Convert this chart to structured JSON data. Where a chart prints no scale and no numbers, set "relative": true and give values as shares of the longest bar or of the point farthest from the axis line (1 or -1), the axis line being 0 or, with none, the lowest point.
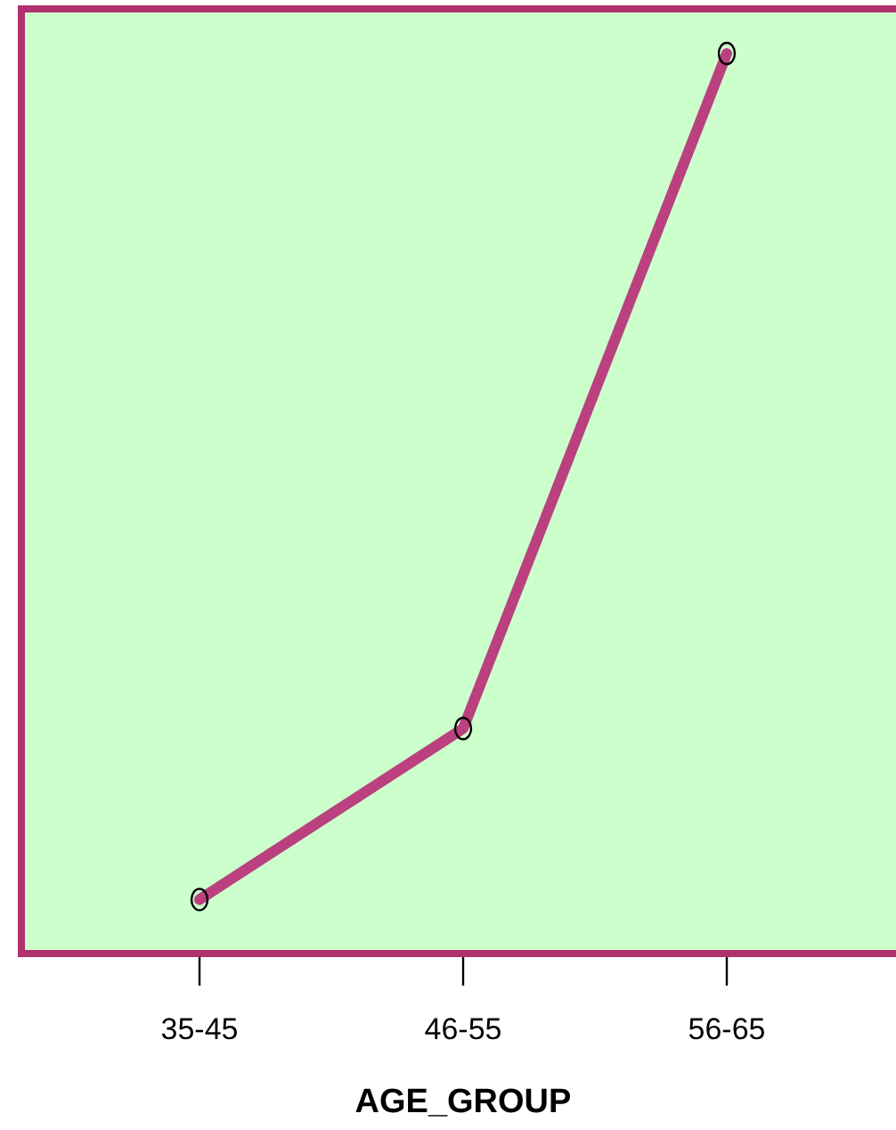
{
  "chart_data": {
    "type": "line",
    "xlabel": "AGE_GROUP",
    "categories": [
      "35-45",
      "46-55",
      "56-65"
    ],
    "series": [
      {
        "color": "#bb4080",
        "values": [
          0.06,
          0.25,
          1
        ]
      }
    ],
    "relative": true,
    "marker": "circle",
    "line_style": "solid",
    "grid": false,
    "legend": false
  }
}
